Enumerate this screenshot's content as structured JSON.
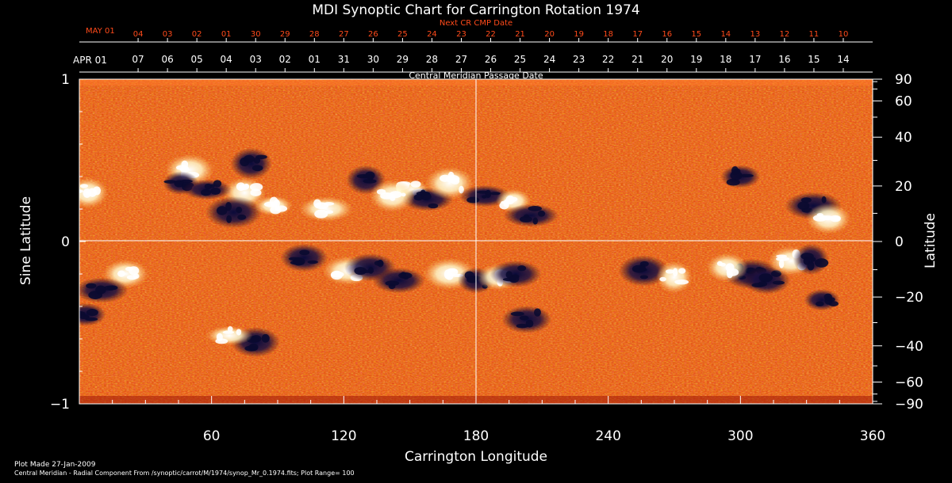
{
  "chart_data": {
    "type": "heatmap",
    "title": "MDI Synoptic Chart for Carrington Rotation 1974",
    "xlabel": "Carrington Longitude",
    "ylabel_left": "Sine Latitude",
    "ylabel_right": "Latitude",
    "xlim": [
      0,
      360
    ],
    "ylim": [
      -1,
      1
    ],
    "x_ticks": [
      60,
      120,
      180,
      240,
      300,
      360
    ],
    "y_ticks_left": [
      "1",
      "0",
      "−1"
    ],
    "y_ticks_right": [
      "90",
      "60",
      "40",
      "20",
      "0",
      "−20",
      "−40",
      "−60",
      "−90"
    ],
    "grid": "center cross at longitude 180 and sine latitude 0",
    "colormap": [
      "#0a0a3a",
      "#551010",
      "#d23a08",
      "#f4701a",
      "#ffb030",
      "#ffffe0"
    ],
    "top_axis_label": "Central Meridian Passage Date",
    "top_axis_start": "APR 01",
    "top_axis_dates": [
      "07",
      "06",
      "05",
      "04",
      "03",
      "02",
      "01",
      "31",
      "30",
      "29",
      "28",
      "27",
      "26",
      "25",
      "24",
      "23",
      "22",
      "21",
      "20",
      "19",
      "18",
      "17",
      "16",
      "15",
      "14"
    ],
    "next_axis_label": "Next CR CMP Date",
    "next_axis_start": "MAY 01",
    "next_axis_dates": [
      "04",
      "03",
      "02",
      "01",
      "30",
      "29",
      "28",
      "27",
      "26",
      "25",
      "24",
      "23",
      "22",
      "21",
      "20",
      "19",
      "18",
      "17",
      "16",
      "15",
      "14",
      "13",
      "12",
      "11",
      "10"
    ],
    "plot_range": 100,
    "active_regions": [
      {
        "lon": 50,
        "sinlat": 0.44,
        "polarity": "positive"
      },
      {
        "lon": 46,
        "sinlat": 0.36,
        "polarity": "negative"
      },
      {
        "lon": 78,
        "sinlat": 0.48,
        "polarity": "negative"
      },
      {
        "lon": 75,
        "sinlat": 0.3,
        "polarity": "positive"
      },
      {
        "lon": 58,
        "sinlat": 0.32,
        "polarity": "negative"
      },
      {
        "lon": 70,
        "sinlat": 0.18,
        "polarity": "negative"
      },
      {
        "lon": 88,
        "sinlat": 0.22,
        "polarity": "positive"
      },
      {
        "lon": 130,
        "sinlat": 0.38,
        "polarity": "negative"
      },
      {
        "lon": 150,
        "sinlat": 0.32,
        "polarity": "positive"
      },
      {
        "lon": 158,
        "sinlat": 0.26,
        "polarity": "negative"
      },
      {
        "lon": 142,
        "sinlat": 0.28,
        "polarity": "positive"
      },
      {
        "lon": 168,
        "sinlat": 0.36,
        "polarity": "positive"
      },
      {
        "lon": 184,
        "sinlat": 0.28,
        "polarity": "negative"
      },
      {
        "lon": 197,
        "sinlat": 0.25,
        "polarity": "positive"
      },
      {
        "lon": 205,
        "sinlat": 0.16,
        "polarity": "negative"
      },
      {
        "lon": 112,
        "sinlat": 0.2,
        "polarity": "positive"
      },
      {
        "lon": 102,
        "sinlat": -0.1,
        "polarity": "negative"
      },
      {
        "lon": 122,
        "sinlat": -0.18,
        "polarity": "positive"
      },
      {
        "lon": 132,
        "sinlat": -0.16,
        "polarity": "negative"
      },
      {
        "lon": 145,
        "sinlat": -0.24,
        "polarity": "negative"
      },
      {
        "lon": 168,
        "sinlat": -0.2,
        "polarity": "positive"
      },
      {
        "lon": 180,
        "sinlat": -0.24,
        "polarity": "negative"
      },
      {
        "lon": 190,
        "sinlat": -0.22,
        "polarity": "positive"
      },
      {
        "lon": 198,
        "sinlat": -0.2,
        "polarity": "negative"
      },
      {
        "lon": 21,
        "sinlat": -0.2,
        "polarity": "positive"
      },
      {
        "lon": 10,
        "sinlat": -0.3,
        "polarity": "negative"
      },
      {
        "lon": 3,
        "sinlat": -0.45,
        "polarity": "negative"
      },
      {
        "lon": 256,
        "sinlat": -0.18,
        "polarity": "negative"
      },
      {
        "lon": 270,
        "sinlat": -0.22,
        "polarity": "positive"
      },
      {
        "lon": 305,
        "sinlat": -0.2,
        "polarity": "negative"
      },
      {
        "lon": 294,
        "sinlat": -0.16,
        "polarity": "positive"
      },
      {
        "lon": 312,
        "sinlat": -0.24,
        "polarity": "negative"
      },
      {
        "lon": 323,
        "sinlat": -0.12,
        "polarity": "positive"
      },
      {
        "lon": 332,
        "sinlat": -0.11,
        "polarity": "negative"
      },
      {
        "lon": 337,
        "sinlat": -0.36,
        "polarity": "negative"
      },
      {
        "lon": 80,
        "sinlat": -0.62,
        "polarity": "negative"
      },
      {
        "lon": 68,
        "sinlat": -0.58,
        "polarity": "positive"
      },
      {
        "lon": 300,
        "sinlat": 0.4,
        "polarity": "negative"
      },
      {
        "lon": 333,
        "sinlat": 0.22,
        "polarity": "negative"
      },
      {
        "lon": 340,
        "sinlat": 0.14,
        "polarity": "positive"
      },
      {
        "lon": 203,
        "sinlat": -0.48,
        "polarity": "negative"
      },
      {
        "lon": 4,
        "sinlat": 0.3,
        "polarity": "positive"
      }
    ]
  },
  "footer": {
    "plot_made": "Plot Made 27-Jan-2009",
    "source": "Central Meridian - Radial Component From /synoptic/carrot/M/1974/synop_Mr_0.1974.fits; Plot Range=  100"
  }
}
